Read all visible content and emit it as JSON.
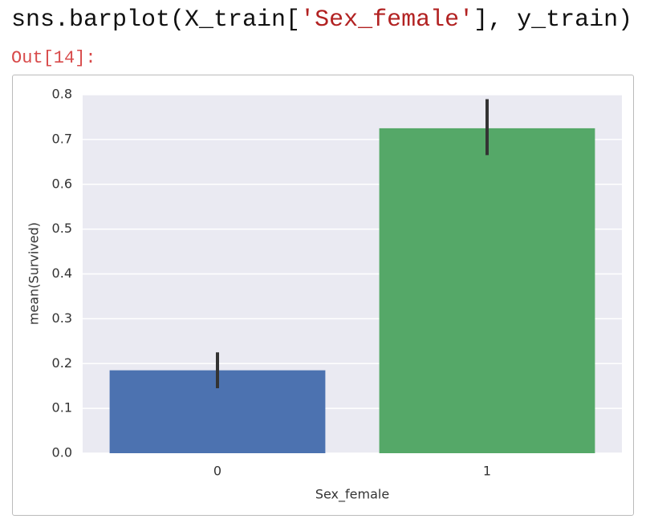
{
  "code": {
    "parts": [
      "sns.barplot(X_train[",
      "'Sex_female'",
      "], y_train)"
    ]
  },
  "output_prompt": "Out[14]:",
  "chart_data": {
    "type": "bar",
    "x_label": "Sex_female",
    "y_label": "mean(Survived)",
    "categories": [
      "0",
      "1"
    ],
    "values": [
      0.185,
      0.725
    ],
    "colors": [
      "#4c72b0",
      "#55a868"
    ],
    "ci_lower": [
      0.145,
      0.665
    ],
    "ci_upper": [
      0.225,
      0.79
    ],
    "ylim": [
      0,
      0.8
    ],
    "yticks": [
      {
        "value": 0,
        "label": "0.0"
      },
      0.1,
      0.2,
      0.3,
      0.4,
      0.5,
      0.6,
      0.7,
      0.8
    ],
    "grid": true
  }
}
